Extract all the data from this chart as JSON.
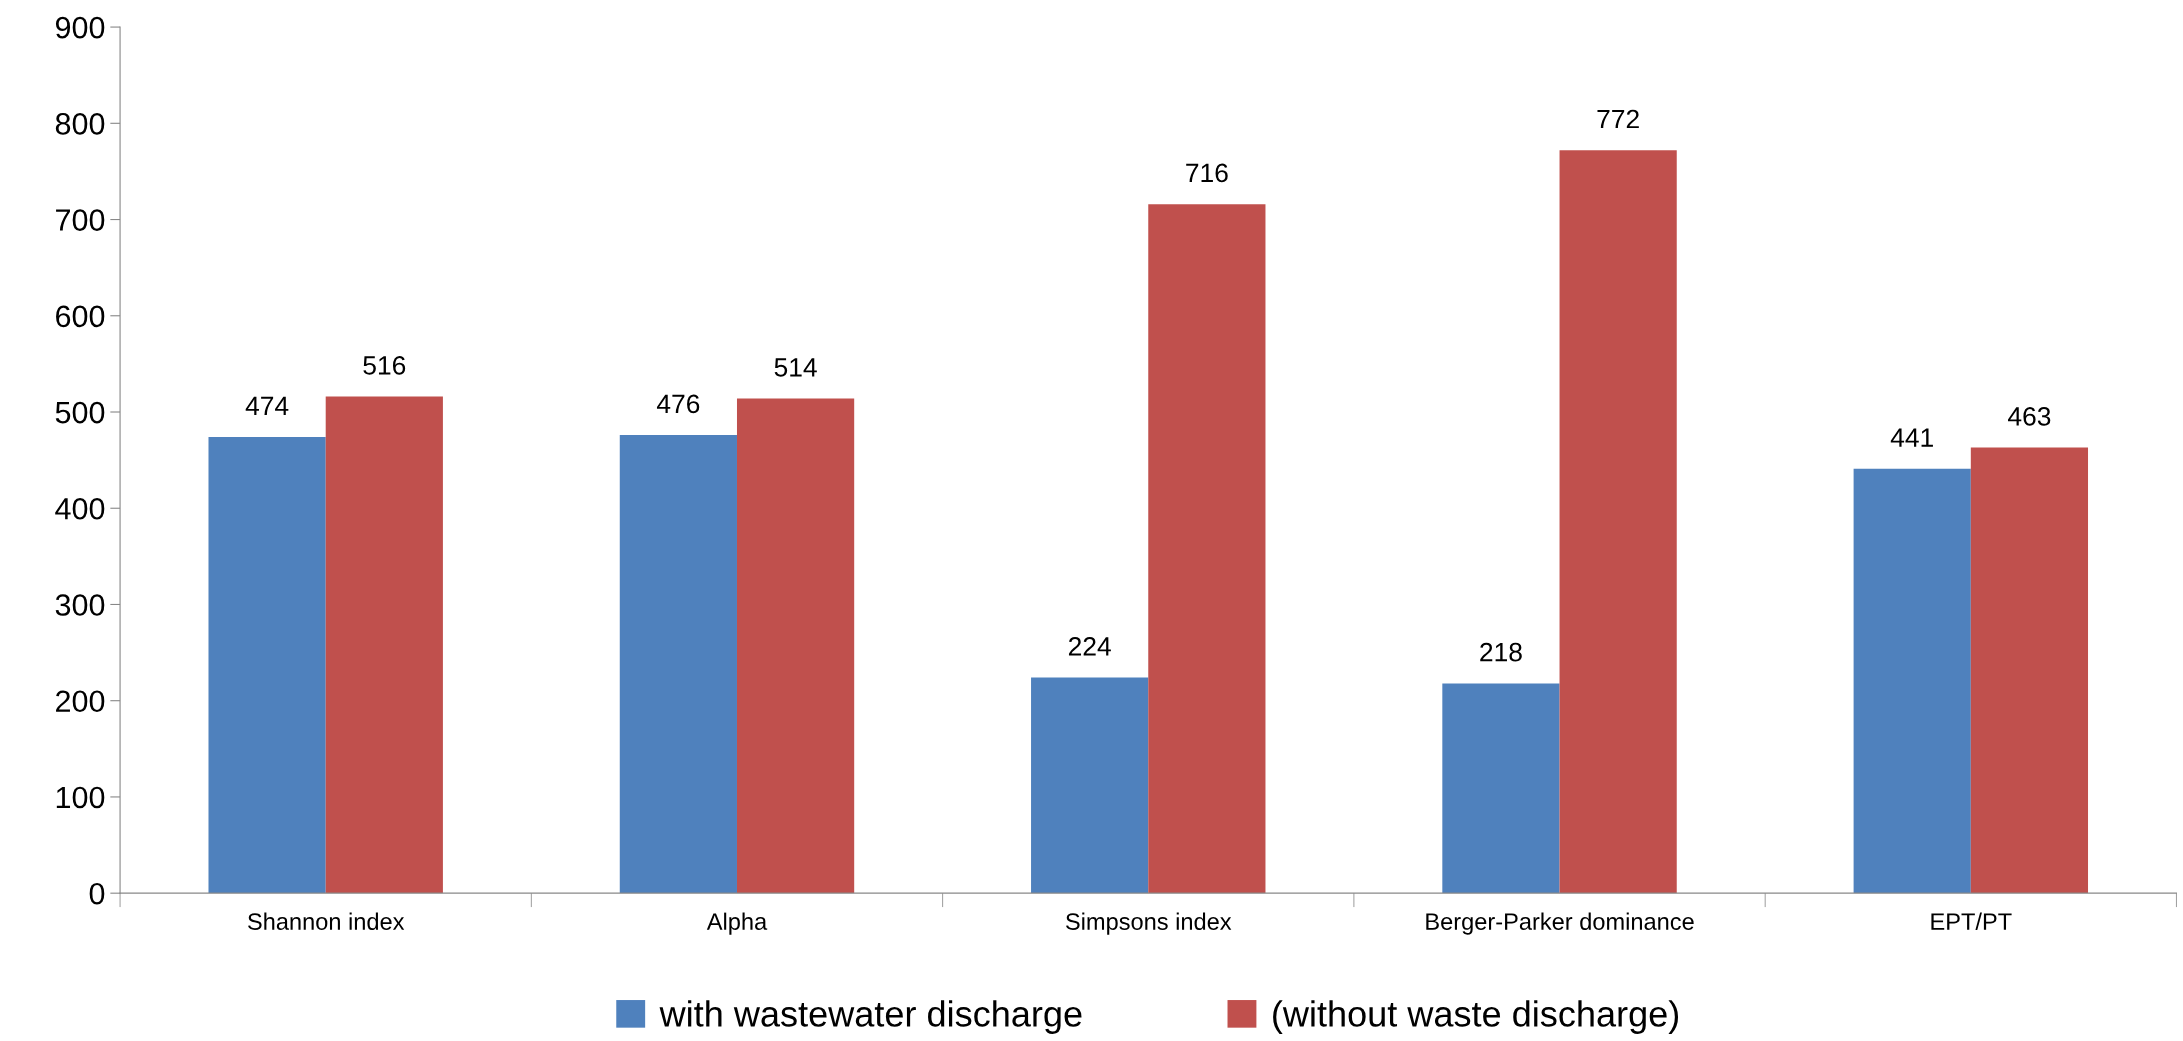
{
  "chart_data": {
    "type": "bar",
    "categories": [
      "Shannon index",
      "Alpha",
      "Simpsons index",
      "Berger-Parker dominance",
      "EPT/PT"
    ],
    "series": [
      {
        "name": "with wastewater discharge",
        "color": "#4f81bd",
        "values": [
          474,
          476,
          224,
          218,
          441
        ]
      },
      {
        "name": "(without waste discharge)",
        "color": "#c0504d",
        "values": [
          516,
          514,
          716,
          772,
          463
        ]
      }
    ],
    "ylim": [
      0,
      900
    ],
    "yticks": [
      0,
      100,
      200,
      300,
      400,
      500,
      600,
      700,
      800,
      900
    ],
    "data_labels": true,
    "grid": false,
    "legend": "bottom"
  }
}
